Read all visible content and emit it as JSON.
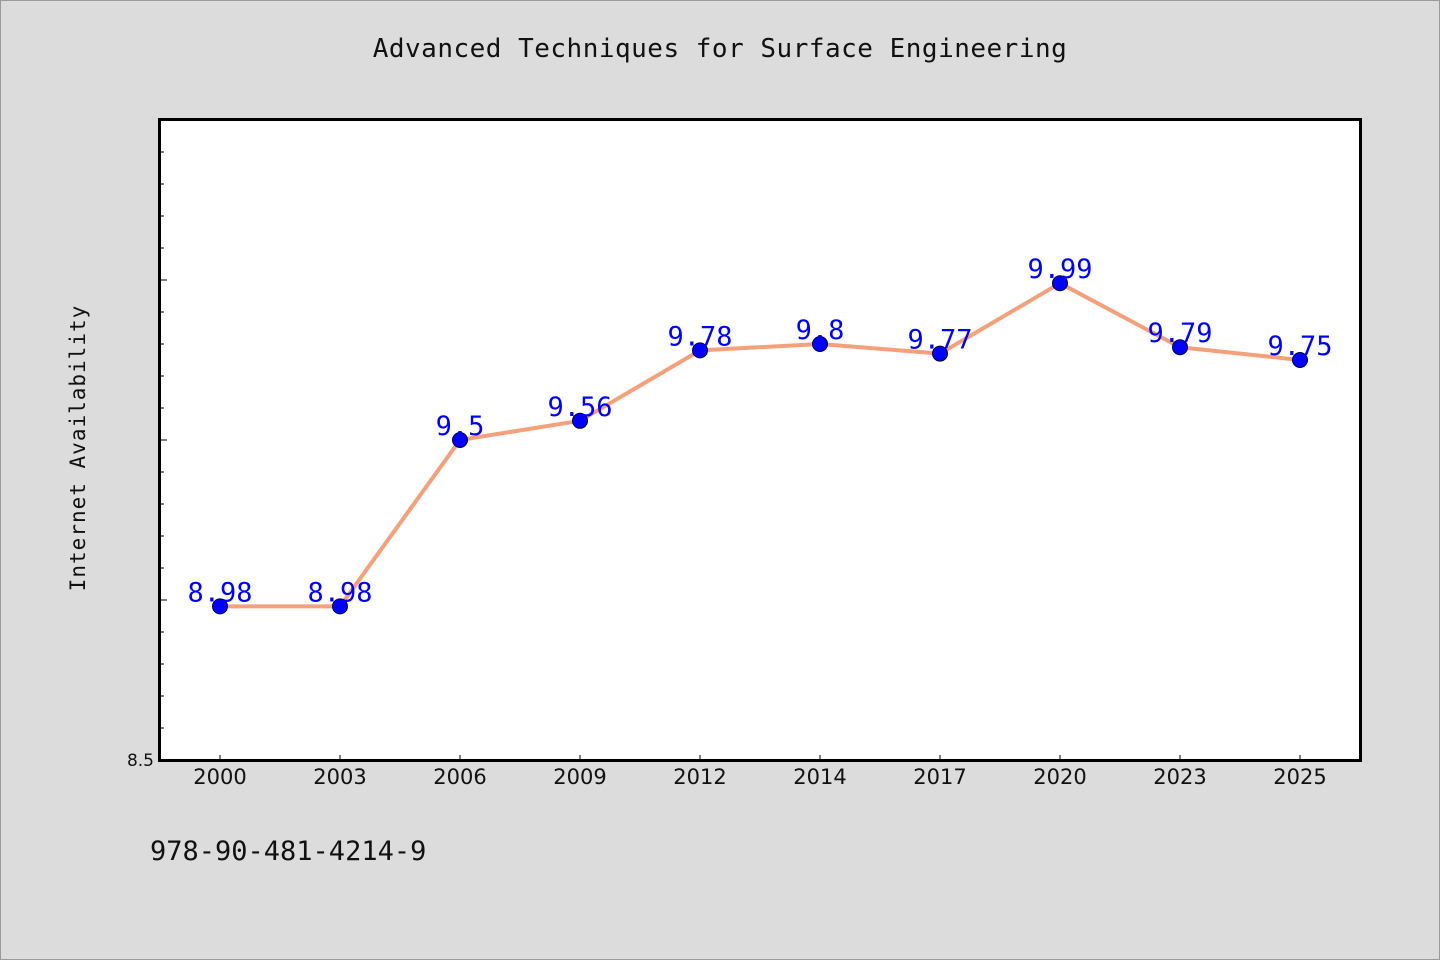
{
  "chart_data": {
    "type": "line",
    "title": "Advanced Techniques for Surface Engineering",
    "xlabel": "",
    "ylabel": "Internet Availability",
    "categories": [
      "2000",
      "2003",
      "2006",
      "2009",
      "2012",
      "2014",
      "2017",
      "2020",
      "2023",
      "2025"
    ],
    "series": [
      {
        "values": [
          8.98,
          8.98,
          9.5,
          9.56,
          9.78,
          9.8,
          9.77,
          9.99,
          9.79,
          9.75
        ],
        "data_labels": [
          "8.98",
          "8.98",
          "9.5",
          "9.56",
          "9.78",
          "9.8",
          "9.77",
          "9.99",
          "9.79",
          "9.75"
        ]
      }
    ],
    "ylim": [
      8.5,
      10.5
    ],
    "y_tick_labels": [
      "8.5"
    ],
    "grid": false,
    "colors": {
      "line": "#f4a07a",
      "marker": "#0000ff",
      "data_label": "#0000ff",
      "plot_background": "#ffffff",
      "page_background": "#dcdcdc"
    }
  },
  "footer": {
    "isbn": "978-90-481-4214-9"
  }
}
